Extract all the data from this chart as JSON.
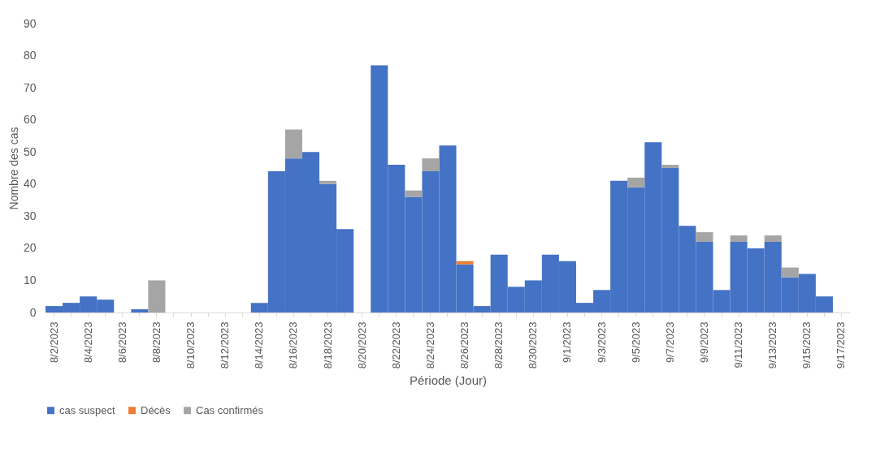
{
  "chart_data": {
    "type": "bar",
    "stacked": true,
    "xlabel": "Période (Jour)",
    "ylabel": "Nombre des cas",
    "categories": [
      "8/2/2023",
      null,
      "8/4/2023",
      null,
      "8/6/2023",
      null,
      "8/8/2023",
      null,
      "8/10/2023",
      null,
      "8/12/2023",
      null,
      "8/14/2023",
      null,
      "8/16/2023",
      null,
      "8/18/2023",
      null,
      "8/20/2023",
      null,
      "8/22/2023",
      null,
      "8/24/2023",
      null,
      "8/26/2023",
      null,
      "8/28/2023",
      null,
      "8/30/2023",
      null,
      "9/1/2023",
      null,
      "9/3/2023",
      null,
      "9/5/2023",
      null,
      "9/7/2023",
      null,
      "9/9/2023",
      null,
      "9/11/2023",
      null,
      "9/13/2023",
      null,
      "9/15/2023",
      null,
      "9/17/2023"
    ],
    "series": [
      {
        "name": "cas suspect",
        "color": "#4472c4",
        "values": [
          2,
          3,
          5,
          4,
          null,
          1,
          null,
          null,
          null,
          null,
          null,
          null,
          3,
          44,
          48,
          50,
          40,
          26,
          null,
          77,
          46,
          36,
          44,
          52,
          15,
          2,
          18,
          8,
          10,
          18,
          16,
          3,
          7,
          41,
          39,
          53,
          45,
          27,
          22,
          7,
          22,
          20,
          22,
          11,
          12,
          5,
          null
        ]
      },
      {
        "name": "Décès",
        "color": "#ed7d31",
        "values": [
          null,
          null,
          null,
          null,
          null,
          null,
          null,
          null,
          null,
          null,
          null,
          null,
          null,
          null,
          null,
          null,
          null,
          null,
          null,
          null,
          null,
          null,
          null,
          null,
          1,
          null,
          null,
          null,
          null,
          null,
          null,
          null,
          null,
          null,
          null,
          null,
          null,
          null,
          null,
          null,
          null,
          null,
          null,
          null,
          null,
          null,
          null
        ]
      },
      {
        "name": "Cas confirmés",
        "color": "#a5a5a5",
        "values": [
          null,
          null,
          null,
          null,
          null,
          null,
          10,
          null,
          null,
          null,
          null,
          null,
          null,
          null,
          9,
          null,
          1,
          null,
          null,
          null,
          null,
          2,
          4,
          null,
          null,
          null,
          null,
          null,
          null,
          null,
          null,
          null,
          null,
          null,
          3,
          null,
          1,
          null,
          3,
          null,
          2,
          null,
          2,
          3,
          null,
          null,
          null
        ]
      }
    ],
    "ylim": [
      0,
      90
    ],
    "yticks": [
      0,
      10,
      20,
      30,
      40,
      50,
      60,
      70,
      80,
      90
    ],
    "grid": false,
    "legend": "bottom"
  }
}
